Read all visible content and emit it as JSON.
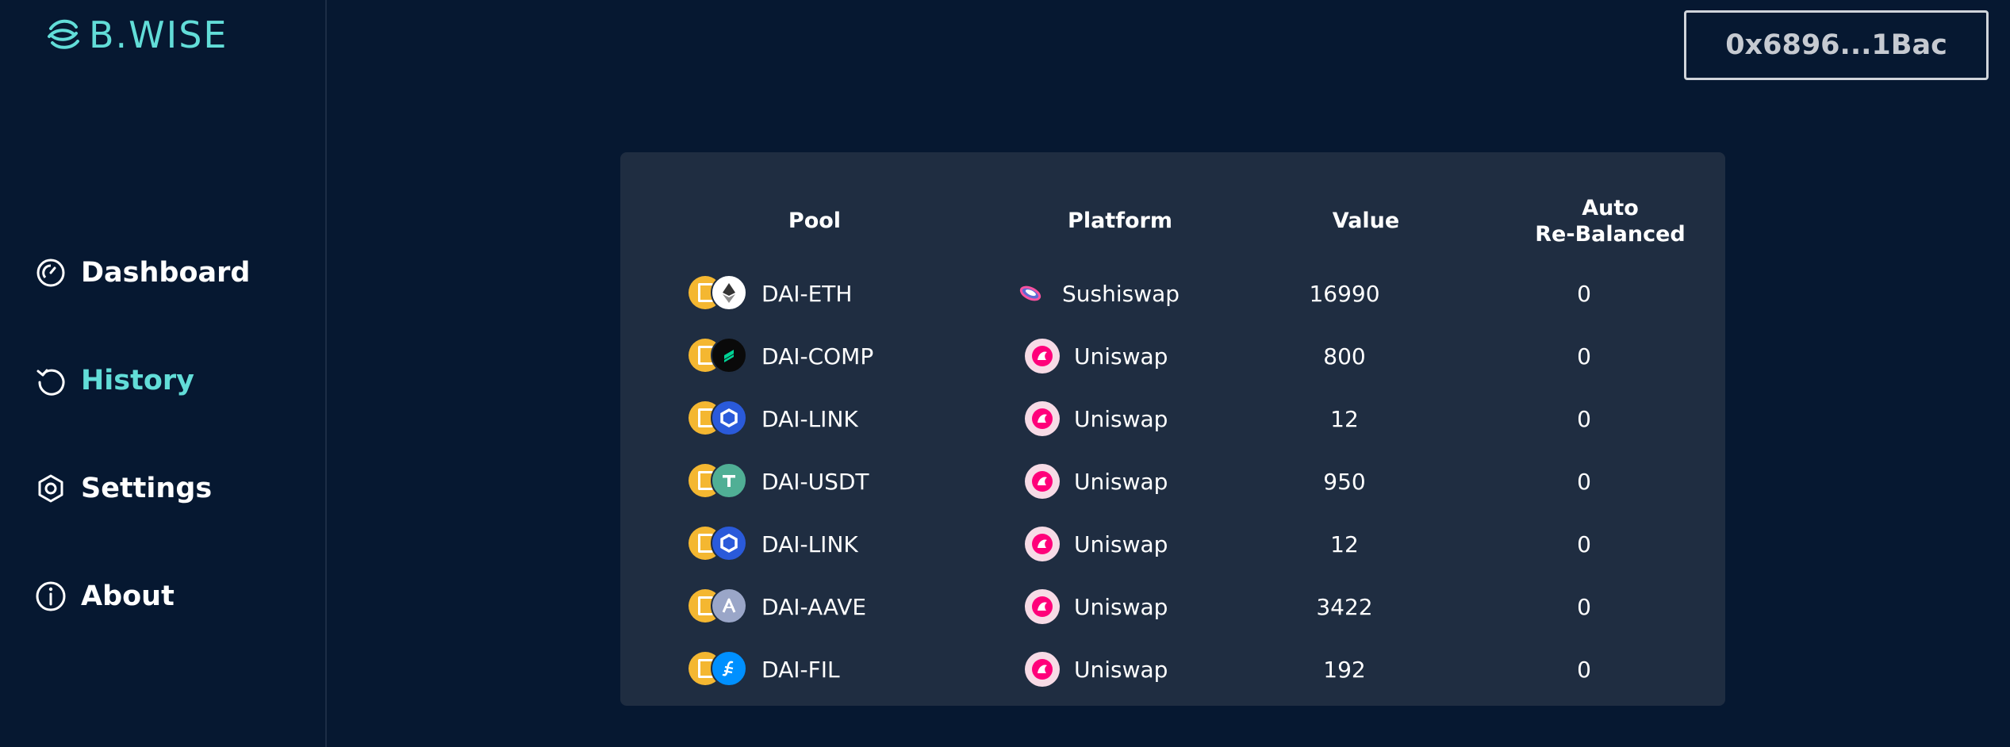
{
  "app": {
    "name": "B.WISE",
    "wallet_address": "0x6896...1Bac"
  },
  "sidebar": {
    "items": [
      {
        "label": "Dashboard",
        "icon": "gauge-icon",
        "active": false
      },
      {
        "label": "History",
        "icon": "history-icon",
        "active": true
      },
      {
        "label": "Settings",
        "icon": "settings-icon",
        "active": false
      },
      {
        "label": "About",
        "icon": "info-icon",
        "active": false
      }
    ]
  },
  "table": {
    "headers": {
      "pool": "Pool",
      "platform": "Platform",
      "value": "Value",
      "auto_rebalanced_line1": "Auto",
      "auto_rebalanced_line2": "Re-Balanced"
    },
    "rows": [
      {
        "pool": "DAI-ETH",
        "token_icon": "eth-icon",
        "platform": "Sushiswap",
        "platform_icon": "sushiswap-icon",
        "value": "16990",
        "auto_rebalanced": "0"
      },
      {
        "pool": "DAI-COMP",
        "token_icon": "comp-icon",
        "platform": "Uniswap",
        "platform_icon": "uniswap-icon",
        "value": "800",
        "auto_rebalanced": "0"
      },
      {
        "pool": "DAI-LINK",
        "token_icon": "link-icon",
        "platform": "Uniswap",
        "platform_icon": "uniswap-icon",
        "value": "12",
        "auto_rebalanced": "0"
      },
      {
        "pool": "DAI-USDT",
        "token_icon": "usdt-icon",
        "platform": "Uniswap",
        "platform_icon": "uniswap-icon",
        "value": "950",
        "auto_rebalanced": "0"
      },
      {
        "pool": "DAI-LINK",
        "token_icon": "link-icon",
        "platform": "Uniswap",
        "platform_icon": "uniswap-icon",
        "value": "12",
        "auto_rebalanced": "0"
      },
      {
        "pool": "DAI-AAVE",
        "token_icon": "aave-icon",
        "platform": "Uniswap",
        "platform_icon": "uniswap-icon",
        "value": "3422",
        "auto_rebalanced": "0"
      },
      {
        "pool": "DAI-FIL",
        "token_icon": "fil-icon",
        "platform": "Uniswap",
        "platform_icon": "uniswap-icon",
        "value": "192",
        "auto_rebalanced": "0"
      }
    ]
  },
  "colors": {
    "background": "#061831",
    "card": "#1f2d41",
    "accent": "#62ddd8",
    "dai": "#f4b731",
    "eth": "#ffffff",
    "comp": "#0a0a0a",
    "link": "#2a5ada",
    "usdt": "#50af95",
    "aave": "#9aa6c8",
    "fil": "#0090ff"
  }
}
